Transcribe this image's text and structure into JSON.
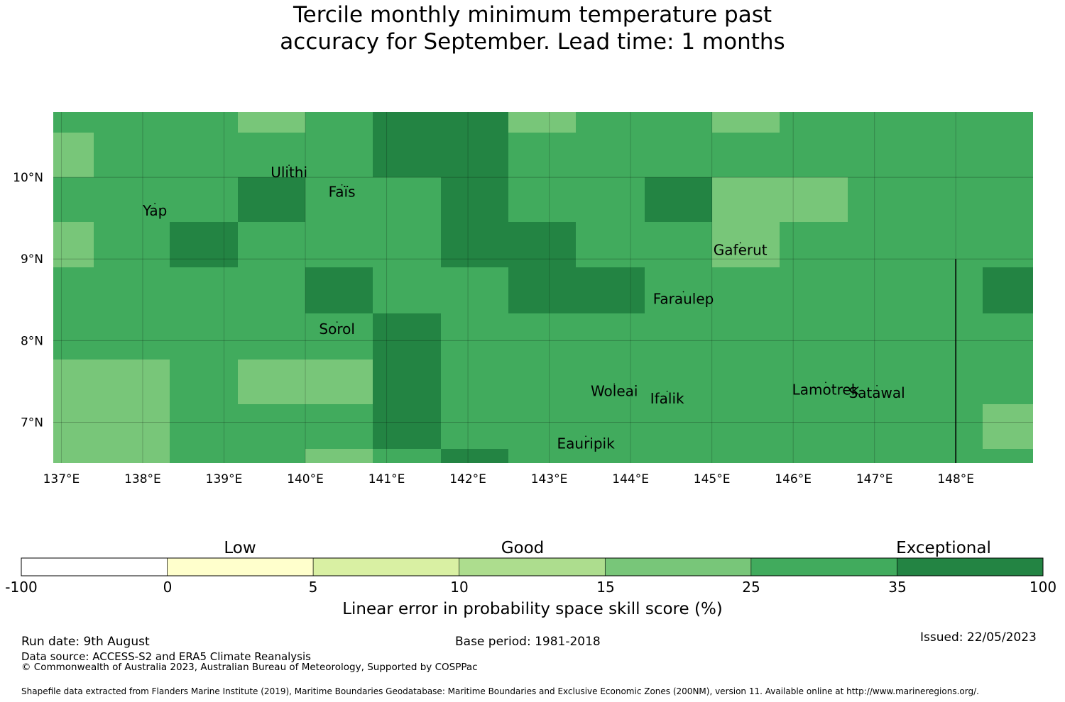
{
  "title": {
    "line1": "Tercile monthly minimum temperature past",
    "line2": "accuracy for September. Lead time: 1 months"
  },
  "map": {
    "lon_ticks": [
      "137°E",
      "138°E",
      "139°E",
      "140°E",
      "141°E",
      "142°E",
      "143°E",
      "144°E",
      "145°E",
      "146°E",
      "147°E",
      "148°E"
    ],
    "lat_ticks": [
      "10°N",
      "9°N",
      "8°N",
      "7°N"
    ],
    "lon_range": [
      136.9,
      148.95
    ],
    "lat_range": [
      6.5,
      10.8
    ],
    "lon_tick_values": [
      137,
      138,
      139,
      140,
      141,
      142,
      143,
      144,
      145,
      146,
      147,
      148
    ],
    "lat_tick_values": [
      10,
      9,
      8,
      7
    ],
    "grid_lines": true,
    "skill_grid": {
      "col_edges_lon": [
        136.9,
        137.4,
        138.33,
        139.17,
        140.0,
        140.83,
        141.67,
        142.5,
        143.33,
        144.17,
        145.0,
        145.83,
        146.67,
        147.5,
        148.33,
        148.95
      ],
      "row_edges_lat": [
        10.8,
        10.55,
        10.0,
        9.45,
        8.9,
        8.33,
        7.77,
        7.22,
        6.67,
        6.5
      ],
      "categories_rows_top_to_bottom": [
        [
          5,
          5,
          5,
          4,
          5,
          6,
          6,
          4,
          5,
          5,
          4,
          5,
          5,
          5,
          5
        ],
        [
          4,
          5,
          5,
          5,
          5,
          6,
          6,
          5,
          5,
          5,
          5,
          5,
          5,
          5,
          5
        ],
        [
          5,
          5,
          5,
          6,
          5,
          5,
          6,
          5,
          5,
          6,
          4,
          4,
          5,
          5,
          5
        ],
        [
          4,
          5,
          6,
          5,
          5,
          5,
          6,
          6,
          5,
          5,
          4,
          5,
          5,
          5,
          5
        ],
        [
          5,
          5,
          5,
          5,
          6,
          5,
          5,
          6,
          6,
          5,
          5,
          5,
          5,
          5,
          6
        ],
        [
          5,
          5,
          5,
          5,
          5,
          6,
          5,
          5,
          5,
          5,
          5,
          5,
          5,
          5,
          5
        ],
        [
          4,
          4,
          5,
          4,
          4,
          6,
          5,
          5,
          5,
          5,
          5,
          5,
          5,
          5,
          5
        ],
        [
          4,
          4,
          5,
          5,
          5,
          6,
          5,
          5,
          5,
          5,
          5,
          5,
          5,
          5,
          4
        ],
        [
          4,
          4,
          5,
          5,
          4,
          5,
          6,
          5,
          5,
          5,
          5,
          5,
          5,
          5,
          5
        ]
      ]
    },
    "eez_boundary": {
      "lon": 148.0,
      "lat_from": 9.0,
      "lat_to": 6.5
    },
    "places": [
      {
        "name": "Ulithi",
        "lon": 139.8,
        "lat": 10.0
      },
      {
        "name": "Faïs",
        "lon": 140.45,
        "lat": 9.76
      },
      {
        "name": "Yap",
        "lon": 138.15,
        "lat": 9.53
      },
      {
        "name": "Gaferut",
        "lon": 145.35,
        "lat": 9.05
      },
      {
        "name": "Faraulep",
        "lon": 144.65,
        "lat": 8.45
      },
      {
        "name": "Sorol",
        "lon": 140.39,
        "lat": 8.08
      },
      {
        "name": "Woleai",
        "lon": 143.8,
        "lat": 7.32
      },
      {
        "name": "Ifalik",
        "lon": 144.45,
        "lat": 7.23
      },
      {
        "name": "Lamotrek",
        "lon": 146.4,
        "lat": 7.34
      },
      {
        "name": "Satawal",
        "lon": 147.03,
        "lat": 7.3
      },
      {
        "name": "Eauripik",
        "lon": 143.45,
        "lat": 6.68
      }
    ]
  },
  "colorbar": {
    "boundaries": [
      "-100",
      "0",
      "5",
      "10",
      "15",
      "25",
      "35",
      "100"
    ],
    "colors": [
      "#ffffff",
      "#ffffcc",
      "#d9f0a3",
      "#addd8e",
      "#78c679",
      "#41ab5d",
      "#238443"
    ],
    "category_labels": [
      "Low",
      "Good",
      "Exceptional"
    ],
    "label": "Linear error in probability space skill score (%)"
  },
  "footer": {
    "run_date": "Run date: 9th August",
    "base_period": "Base period: 1981-2018",
    "issued": "Issued: 22/05/2023",
    "data_source": "Data source: ACCESS-S2 and ERA5 Climate Reanalysis",
    "copyright": "© Commonwealth of Australia 2023, Australian Bureau of Meteorology, Supported by COSPPac",
    "shapefile": "Shapefile data extracted from Flanders Marine Institute (2019), Maritime Boundaries Geodatabase: Maritime Boundaries and Exclusive Economic Zones (200NM), version 11. Available online at http://www.marineregions.org/."
  }
}
